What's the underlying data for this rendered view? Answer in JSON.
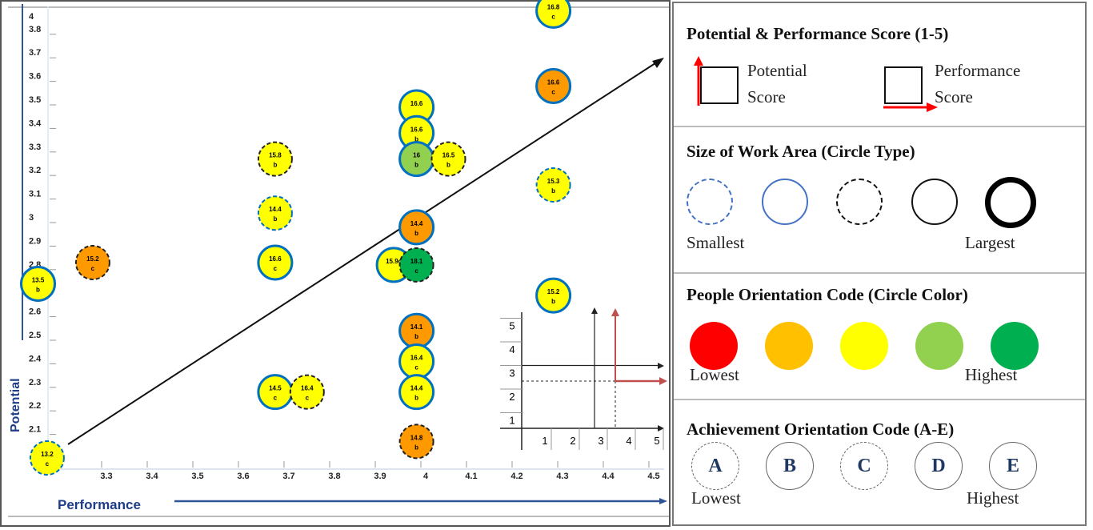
{
  "chart_data": {
    "type": "scatter",
    "xlabel": "Performance",
    "ylabel": "Potential",
    "xlim": [
      3.2,
      4.5
    ],
    "ylim": [
      2.0,
      4.0
    ],
    "x_ticks": [
      "3.3",
      "3.4",
      "3.5",
      "3.6",
      "3.7",
      "3.8",
      "3.9",
      "4",
      "4.1",
      "4.2",
      "4.3",
      "4.4",
      "4.5"
    ],
    "y_ticks": [
      "2.1",
      "2.2",
      "2.3",
      "2.4",
      "2.5",
      "2.6",
      "2.8",
      "2.9",
      "3",
      "3.1",
      "3.2",
      "3.3",
      "3.4",
      "3.5",
      "3.6",
      "3.7",
      "3.8",
      "4"
    ],
    "grid": false,
    "trend_arrow": true,
    "points": [
      {
        "x": 3.17,
        "y": 2.0,
        "score": "13.2",
        "code": "c",
        "color": "#ffff00",
        "border": "blue-dashed"
      },
      {
        "x": 3.15,
        "y": 2.74,
        "score": "13.5",
        "code": "b",
        "color": "#ffff00",
        "border": "blue-solid"
      },
      {
        "x": 3.27,
        "y": 2.83,
        "score": "15.2",
        "code": "c",
        "color": "#ff9900",
        "border": "black-dashed"
      },
      {
        "x": 3.67,
        "y": 3.27,
        "score": "15.8",
        "code": "b",
        "color": "#ffff00",
        "border": "black-dashed"
      },
      {
        "x": 3.67,
        "y": 3.04,
        "score": "14.4",
        "code": "b",
        "color": "#ffff00",
        "border": "blue-dashed"
      },
      {
        "x": 3.67,
        "y": 2.83,
        "score": "16.6",
        "code": "c",
        "color": "#ffff00",
        "border": "blue-solid"
      },
      {
        "x": 3.67,
        "y": 2.28,
        "score": "14.5",
        "code": "c",
        "color": "#ffff00",
        "border": "blue-solid"
      },
      {
        "x": 3.74,
        "y": 2.28,
        "score": "16.4",
        "code": "c",
        "color": "#ffff00",
        "border": "black-dashed"
      },
      {
        "x": 3.98,
        "y": 3.49,
        "score": "16.6",
        "code": "",
        "color": "#ffff00",
        "border": "blue-solid"
      },
      {
        "x": 3.98,
        "y": 3.38,
        "score": "16.6",
        "code": "b",
        "color": "#ffff00",
        "border": "blue-solid"
      },
      {
        "x": 3.98,
        "y": 3.27,
        "score": "16",
        "code": "b",
        "color": "#92d050",
        "border": "blue-solid"
      },
      {
        "x": 4.05,
        "y": 3.27,
        "score": "16.5",
        "code": "b",
        "color": "#ffff00",
        "border": "black-dashed"
      },
      {
        "x": 3.98,
        "y": 2.98,
        "score": "14.4",
        "code": "b",
        "color": "#ff9900",
        "border": "blue-solid"
      },
      {
        "x": 3.93,
        "y": 2.82,
        "score": "15.9c",
        "code": "",
        "color": "#ffff00",
        "border": "blue-solid"
      },
      {
        "x": 3.98,
        "y": 2.82,
        "score": "18.1",
        "code": "c",
        "color": "#00b050",
        "border": "black-dashed"
      },
      {
        "x": 3.98,
        "y": 2.54,
        "score": "14.1",
        "code": "b",
        "color": "#ff9900",
        "border": "blue-solid"
      },
      {
        "x": 3.98,
        "y": 2.41,
        "score": "16.4",
        "code": "c",
        "color": "#ffff00",
        "border": "blue-solid"
      },
      {
        "x": 3.98,
        "y": 2.28,
        "score": "14.4",
        "code": "b",
        "color": "#ffff00",
        "border": "blue-solid"
      },
      {
        "x": 3.98,
        "y": 2.07,
        "score": "14.8",
        "code": "b",
        "color": "#ff9900",
        "border": "black-dashed"
      },
      {
        "x": 4.28,
        "y": 3.9,
        "score": "16.8",
        "code": "c",
        "color": "#ffff00",
        "border": "blue-solid"
      },
      {
        "x": 4.28,
        "y": 3.58,
        "score": "16.6",
        "code": "c",
        "color": "#ff9900",
        "border": "blue-solid"
      },
      {
        "x": 4.28,
        "y": 3.16,
        "score": "15.3",
        "code": "b",
        "color": "#ffff00",
        "border": "blue-dashed"
      },
      {
        "x": 4.28,
        "y": 2.69,
        "score": "15.2",
        "code": "b",
        "color": "#ffff00",
        "border": "blue-solid"
      }
    ],
    "inset": {
      "x_ticks": [
        "1",
        "2",
        "3",
        "4",
        "5"
      ],
      "y_ticks": [
        "1",
        "2",
        "3",
        "4",
        "5"
      ]
    }
  },
  "legend": {
    "score": {
      "title": "Potential & Performance Score (1-5)",
      "potential_1": "Potential",
      "potential_2": "Score",
      "performance_1": "Performance",
      "performance_2": "Score"
    },
    "size": {
      "title": "Size of Work Area (Circle Type)",
      "low": "Smallest",
      "high": "Largest"
    },
    "people": {
      "title": "People Orientation Code (Circle Color)",
      "low": "Lowest",
      "high": "Highest",
      "colors": [
        "#ff0000",
        "#ffc000",
        "#ffff00",
        "#92d050",
        "#00b050"
      ]
    },
    "achievement": {
      "title": "Achievement Orientation Code (A-E)",
      "low": "Lowest",
      "high": "Highest",
      "codes": [
        "A",
        "B",
        "C",
        "D",
        "E"
      ]
    }
  }
}
